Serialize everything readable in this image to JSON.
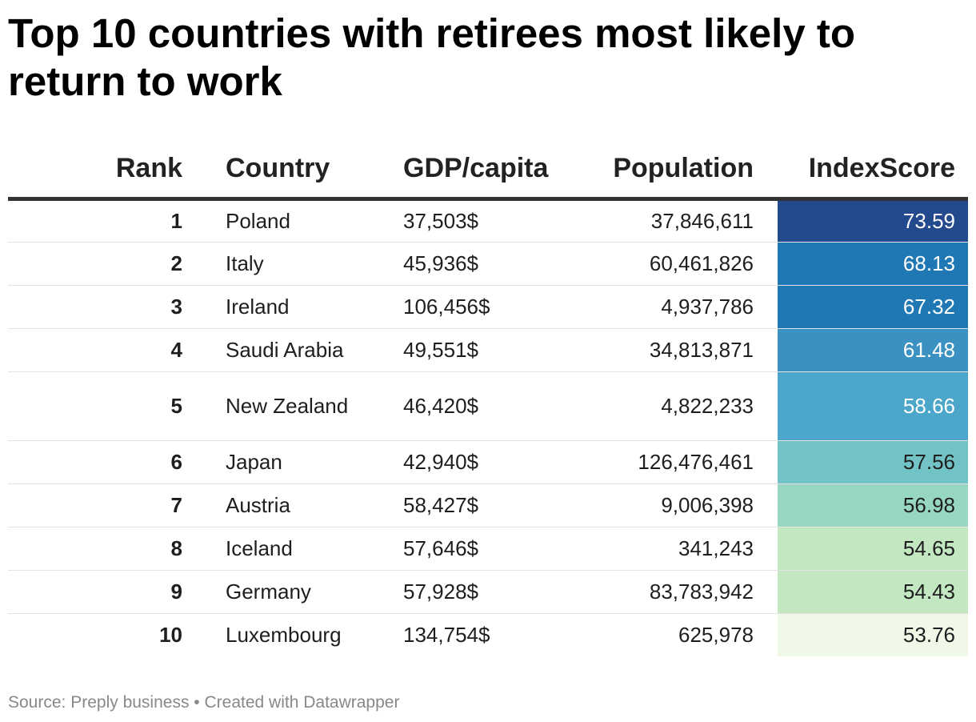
{
  "title": "Top 10 countries with retirees most likely to return to work",
  "footer": {
    "source": "Source: Preply business",
    "separator": "•",
    "credit": "Created with Datawrapper"
  },
  "colors": {
    "scale": [
      "#f0f9e8",
      "#c2e7c1",
      "#97d6c0",
      "#72c3c6",
      "#4ba6c9",
      "#3a91c2",
      "#1f78b4",
      "#234a8c"
    ],
    "light_text": "#ffffff",
    "dark_text": "#1e1e1e"
  },
  "chart_data": {
    "type": "table",
    "title": "Top 10 countries with retirees most likely to return to work",
    "columns": [
      "Rank",
      "Country",
      "GDP/capita",
      "Population",
      "IndexScore"
    ],
    "rows": [
      {
        "rank": "1",
        "country": "Poland",
        "gdp": "37,503$",
        "population": "37,846,611",
        "score": "73.59",
        "color": "#234a8c",
        "light": true
      },
      {
        "rank": "2",
        "country": "Italy",
        "gdp": "45,936$",
        "population": "60,461,826",
        "score": "68.13",
        "color": "#1f78b4",
        "light": true
      },
      {
        "rank": "3",
        "country": "Ireland",
        "gdp": "106,456$",
        "population": "4,937,786",
        "score": "67.32",
        "color": "#1f78b4",
        "light": true
      },
      {
        "rank": "4",
        "country": "Saudi Arabia",
        "gdp": "49,551$",
        "population": "34,813,871",
        "score": "61.48",
        "color": "#3a91c2",
        "light": true
      },
      {
        "rank": "5",
        "country": "New Zealand",
        "gdp": "46,420$",
        "population": "4,822,233",
        "score": "58.66",
        "color": "#4ba6c9",
        "light": true,
        "tall": true
      },
      {
        "rank": "6",
        "country": "Japan",
        "gdp": "42,940$",
        "population": "126,476,461",
        "score": "57.56",
        "color": "#72c3c6",
        "light": false
      },
      {
        "rank": "7",
        "country": "Austria",
        "gdp": "58,427$",
        "population": "9,006,398",
        "score": "56.98",
        "color": "#97d6c0",
        "light": false
      },
      {
        "rank": "8",
        "country": "Iceland",
        "gdp": "57,646$",
        "population": "341,243",
        "score": "54.65",
        "color": "#c2e7c1",
        "light": false
      },
      {
        "rank": "9",
        "country": "Germany",
        "gdp": "57,928$",
        "population": "83,783,942",
        "score": "54.43",
        "color": "#c2e7c1",
        "light": false
      },
      {
        "rank": "10",
        "country": "Luxembourg",
        "gdp": "134,754$",
        "population": "625,978",
        "score": "53.76",
        "color": "#f0f9e8",
        "light": false
      }
    ]
  }
}
